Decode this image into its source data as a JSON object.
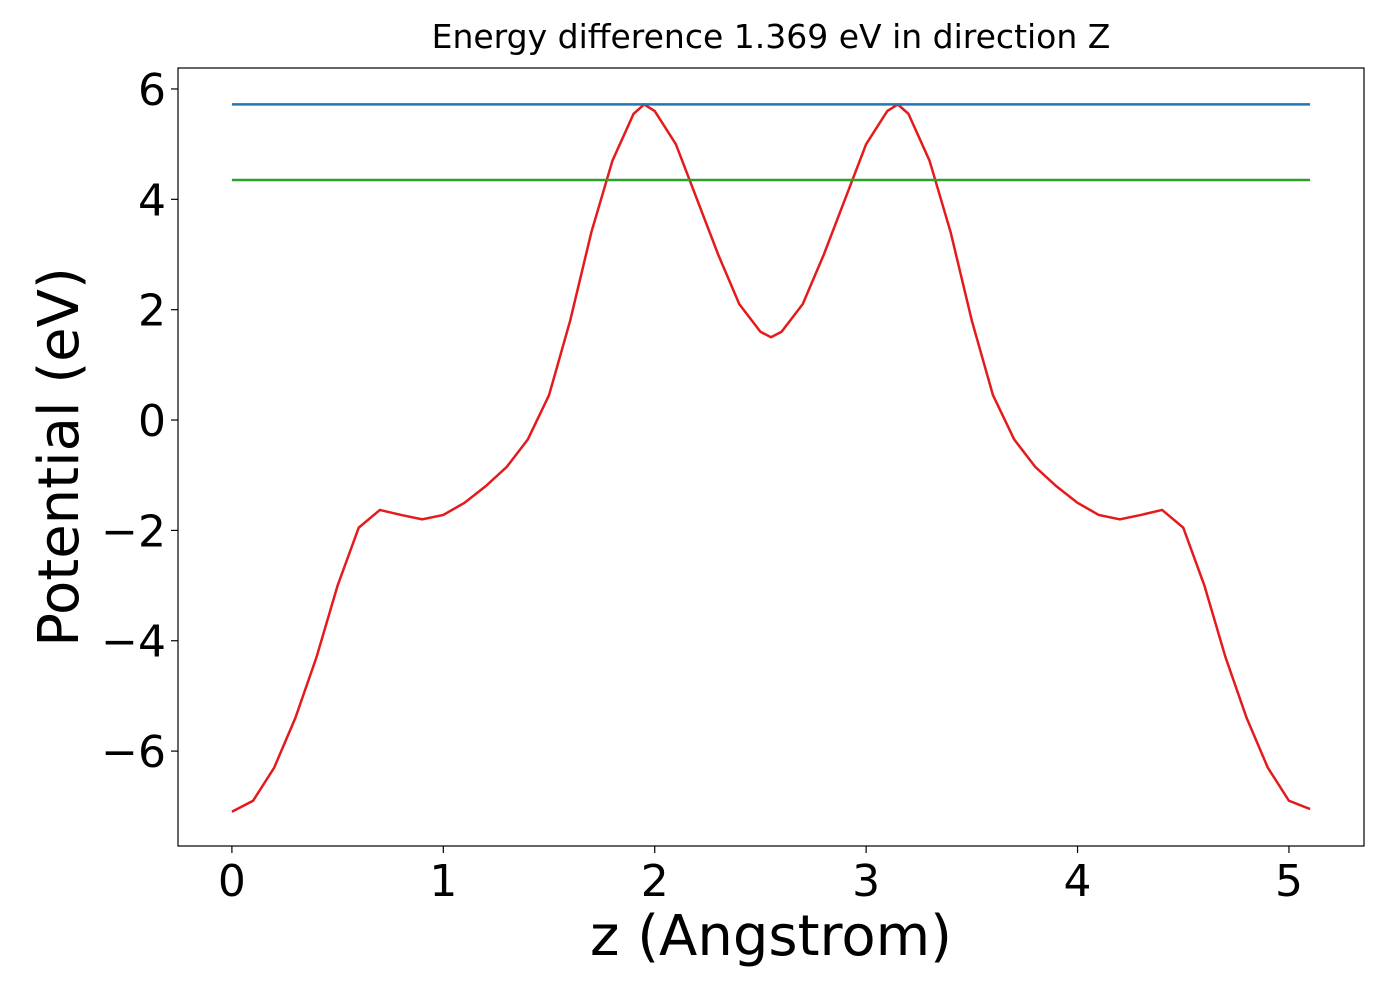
{
  "chart_data": {
    "type": "line",
    "title": "Energy difference 1.369 eV in direction Z",
    "xlabel": "z (Angstrom)",
    "ylabel": "Potential (eV)",
    "xlim": [
      -0.255,
      5.355
    ],
    "ylim": [
      -7.72,
      6.38
    ],
    "xticks": [
      0,
      1,
      2,
      3,
      4,
      5
    ],
    "yticks": [
      {
        "value": -6,
        "label": "−6"
      },
      {
        "value": -4,
        "label": "−4"
      },
      {
        "value": -2,
        "label": "−2"
      },
      0,
      2,
      4,
      6
    ],
    "grid": false,
    "series": [
      {
        "color": "#e41a1c",
        "x": [
          0,
          0.1,
          0.2,
          0.3,
          0.4,
          0.5,
          0.6,
          0.7,
          0.8,
          0.9,
          1.0,
          1.1,
          1.2,
          1.3,
          1.4,
          1.5,
          1.6,
          1.7,
          1.8,
          1.9,
          1.95,
          2.0,
          2.1,
          2.2,
          2.3,
          2.4,
          2.5,
          2.55,
          2.6,
          2.7,
          2.8,
          2.9,
          3.0,
          3.1,
          3.15,
          3.2,
          3.3,
          3.4,
          3.5,
          3.6,
          3.7,
          3.8,
          3.9,
          4.0,
          4.1,
          4.2,
          4.3,
          4.4,
          4.5,
          4.6,
          4.7,
          4.8,
          4.9,
          5.0,
          5.1
        ],
        "values": [
          -7.1,
          -6.9,
          -6.3,
          -5.4,
          -4.3,
          -3.0,
          -1.95,
          -1.63,
          -1.72,
          -1.8,
          -1.72,
          -1.5,
          -1.2,
          -0.85,
          -0.35,
          0.45,
          1.8,
          3.4,
          4.7,
          5.55,
          5.72,
          5.6,
          5.0,
          4.0,
          3.0,
          2.1,
          1.6,
          1.5,
          1.6,
          2.1,
          3.0,
          4.0,
          5.0,
          5.6,
          5.72,
          5.55,
          4.7,
          3.4,
          1.8,
          0.45,
          -0.35,
          -0.85,
          -1.2,
          -1.5,
          -1.72,
          -1.8,
          -1.72,
          -1.63,
          -1.95,
          -3.0,
          -4.3,
          -5.4,
          -6.3,
          -6.9,
          -7.05
        ]
      },
      {
        "color": "#1f77b4",
        "x": [
          0,
          5.1
        ],
        "values": [
          5.72,
          5.72
        ]
      },
      {
        "color": "#2ca02c",
        "x": [
          0,
          5.1
        ],
        "values": [
          4.35,
          4.35
        ]
      }
    ]
  }
}
